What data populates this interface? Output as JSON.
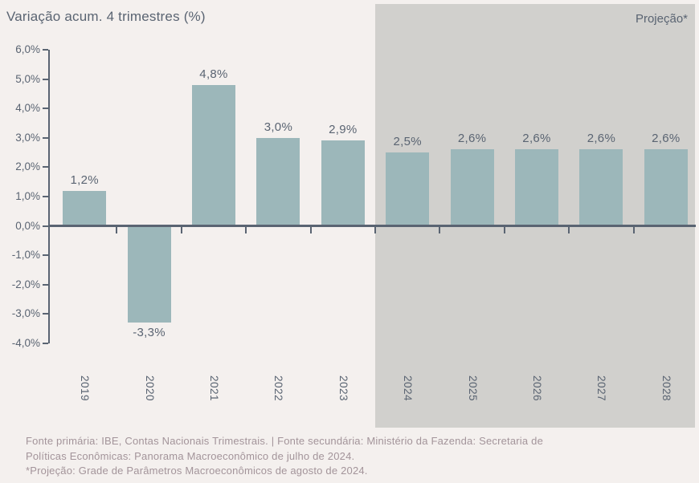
{
  "title": "Variação acum. 4 trimestres (%)",
  "projection_label": "Projeção*",
  "footer": {
    "line1": "Fonte primária: IBE, Contas Nacionais Trimestrais. | Fonte secundária: Ministério da Fazenda: Secretaria de",
    "line2": "Políticas Econômicas: Panorama Macroeconômico de julho de 2024.",
    "line3": "*Projeção: Grade de Parâmetros Macroeconômicos de agosto de 2024."
  },
  "colors": {
    "background": "#f4f0ee",
    "projection_band": "#d1d0cd",
    "bar": "#9cb7ba",
    "axis": "#5a6472",
    "chart_text": "#5a6472",
    "footer_text": "#a3949a"
  },
  "chart_data": {
    "type": "bar",
    "title": "Variação acum. 4 trimestres (%)",
    "categories": [
      "2019",
      "2020",
      "2021",
      "2022",
      "2023",
      "2024",
      "2025",
      "2026",
      "2027",
      "2028"
    ],
    "values": [
      1.2,
      -3.3,
      4.8,
      3.0,
      2.9,
      2.5,
      2.6,
      2.6,
      2.6,
      2.6
    ],
    "value_labels": [
      "1,2%",
      "-3,3%",
      "4,8%",
      "3,0%",
      "2,9%",
      "2,5%",
      "2,6%",
      "2,6%",
      "2,6%",
      "2,6%"
    ],
    "projection_from_index": 5,
    "projection_region_label": "Projeção*",
    "xlabel": "",
    "ylabel": "Variação acum. 4 trimestres (%)",
    "ylim": [
      -4.0,
      6.0
    ],
    "ytick_step": 1.0,
    "ytick_labels": [
      "6,0%",
      "5,0%",
      "4,0%",
      "3,0%",
      "2,0%",
      "1,0%",
      "0,0%",
      "-1,0%",
      "-2,0%",
      "-3,0%",
      "-4,0%"
    ],
    "grid": false,
    "legend": "none"
  }
}
